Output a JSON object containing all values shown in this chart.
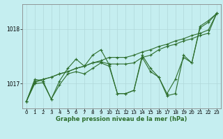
{
  "title": "Graphe pression niveau de la mer (hPa)",
  "background_color": "#c5eef0",
  "grid_color": "#b0d8da",
  "line_color": "#2d6e2d",
  "xlim": [
    -0.5,
    23.5
  ],
  "ylim": [
    1016.55,
    1018.45
  ],
  "yticks": [
    1017,
    1018
  ],
  "xticks": [
    0,
    1,
    2,
    3,
    4,
    5,
    6,
    7,
    8,
    9,
    10,
    11,
    12,
    13,
    14,
    15,
    16,
    17,
    18,
    19,
    20,
    21,
    22,
    23
  ],
  "series": [
    [
      1016.68,
      1017.08,
      1017.05,
      1016.72,
      1017.05,
      1017.28,
      1017.45,
      1017.32,
      1017.52,
      1017.62,
      1017.35,
      1016.82,
      1016.82,
      1016.88,
      1017.52,
      1017.28,
      1017.12,
      1016.82,
      1017.08,
      1017.48,
      1017.38,
      1018.05,
      1018.15,
      1018.28
    ],
    [
      1016.68,
      1017.05,
      1017.08,
      1017.12,
      1017.18,
      1017.22,
      1017.28,
      1017.32,
      1017.38,
      1017.42,
      1017.48,
      1017.48,
      1017.48,
      1017.52,
      1017.58,
      1017.62,
      1017.68,
      1017.72,
      1017.78,
      1017.82,
      1017.88,
      1017.92,
      1017.98,
      1018.28
    ],
    [
      1016.68,
      1017.0,
      1017.02,
      1016.72,
      1016.98,
      1017.18,
      1017.22,
      1017.18,
      1017.28,
      1017.38,
      1017.32,
      1016.82,
      1016.82,
      1016.88,
      1017.48,
      1017.22,
      1017.12,
      1016.78,
      1016.82,
      1017.52,
      1017.38,
      1018.02,
      1018.12,
      1018.28
    ],
    [
      1016.68,
      1017.02,
      1017.08,
      1017.12,
      1017.18,
      1017.22,
      1017.28,
      1017.32,
      1017.38,
      1017.4,
      1017.36,
      1017.36,
      1017.36,
      1017.38,
      1017.48,
      1017.52,
      1017.62,
      1017.68,
      1017.72,
      1017.78,
      1017.82,
      1017.88,
      1017.92,
      1018.28
    ]
  ]
}
